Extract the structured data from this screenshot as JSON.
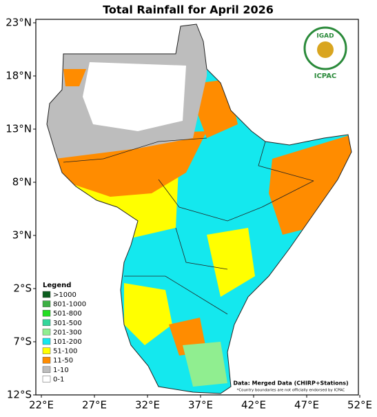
{
  "title": "Total Rainfall for April 2026",
  "axes": {
    "lat_ticks": [
      "23°N",
      "18°N",
      "13°N",
      "8°N",
      "3°N",
      "2°S",
      "7°S",
      "12°S"
    ],
    "lon_ticks": [
      "22°E",
      "27°E",
      "32°E",
      "37°E",
      "42°E",
      "47°E",
      "52°E"
    ]
  },
  "legend": {
    "title": "Legend",
    "items": [
      {
        "label": ">1000",
        "color": "#0b5d1e"
      },
      {
        "label": "801-1000",
        "color": "#3cb043"
      },
      {
        "label": "501-800",
        "color": "#22dd22"
      },
      {
        "label": "301-500",
        "color": "#33d69b"
      },
      {
        "label": "201-300",
        "color": "#90ee90"
      },
      {
        "label": "101-200",
        "color": "#14e8ee"
      },
      {
        "label": "51-100",
        "color": "#ffff00"
      },
      {
        "label": "11-50",
        "color": "#ff8c00"
      },
      {
        "label": "1-10",
        "color": "#bdbdbd"
      },
      {
        "label": "0-1",
        "color": "#ffffff"
      }
    ]
  },
  "logo": {
    "name": "IGAD",
    "org": "ICPAC"
  },
  "notes": {
    "source": "Data: Merged Data (CHIRP+Stations)",
    "disclaimer": "*Country boundaries are not officially endorsed by ICPAC"
  }
}
